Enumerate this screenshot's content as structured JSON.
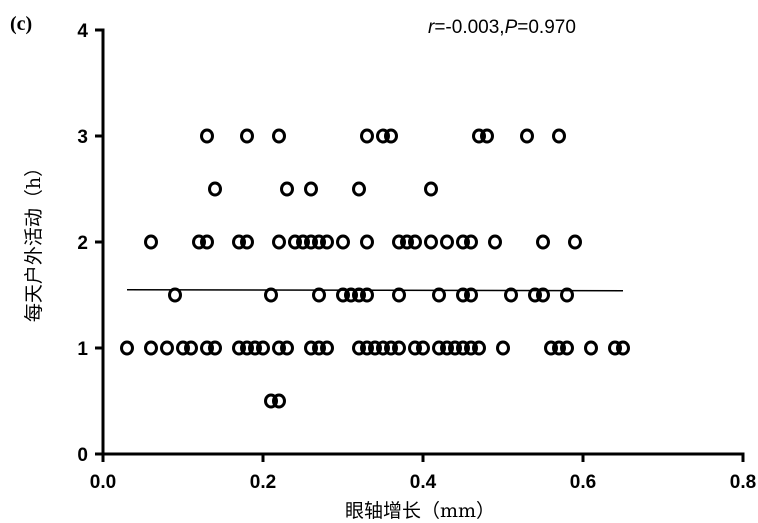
{
  "chart_data": {
    "type": "scatter",
    "panel_label": "(c)",
    "xlabel": "眼轴增长（mm）",
    "ylabel": "每天户外活动（h）",
    "xlim": [
      0.0,
      0.8
    ],
    "ylim": [
      0,
      4
    ],
    "x_ticks": [
      "0.0",
      "0.2",
      "0.4",
      "0.6",
      "0.8"
    ],
    "y_ticks": [
      "0",
      "1",
      "2",
      "3",
      "4"
    ],
    "annotation": {
      "r_symbol": "r",
      "r_value": "=-0.003,",
      "p_symbol": "P",
      "p_value": "=0.970"
    },
    "fit_line": {
      "x": [
        0.03,
        0.65
      ],
      "y": [
        1.55,
        1.54
      ]
    },
    "points": [
      {
        "x": 0.03,
        "y": 1
      },
      {
        "x": 0.06,
        "y": 1
      },
      {
        "x": 0.08,
        "y": 1
      },
      {
        "x": 0.1,
        "y": 1
      },
      {
        "x": 0.11,
        "y": 1
      },
      {
        "x": 0.13,
        "y": 1
      },
      {
        "x": 0.14,
        "y": 1
      },
      {
        "x": 0.17,
        "y": 1
      },
      {
        "x": 0.18,
        "y": 1
      },
      {
        "x": 0.19,
        "y": 1
      },
      {
        "x": 0.2,
        "y": 1
      },
      {
        "x": 0.22,
        "y": 1
      },
      {
        "x": 0.23,
        "y": 1
      },
      {
        "x": 0.26,
        "y": 1
      },
      {
        "x": 0.27,
        "y": 1
      },
      {
        "x": 0.28,
        "y": 1
      },
      {
        "x": 0.32,
        "y": 1
      },
      {
        "x": 0.33,
        "y": 1
      },
      {
        "x": 0.34,
        "y": 1
      },
      {
        "x": 0.35,
        "y": 1
      },
      {
        "x": 0.36,
        "y": 1
      },
      {
        "x": 0.37,
        "y": 1
      },
      {
        "x": 0.39,
        "y": 1
      },
      {
        "x": 0.4,
        "y": 1
      },
      {
        "x": 0.42,
        "y": 1
      },
      {
        "x": 0.43,
        "y": 1
      },
      {
        "x": 0.44,
        "y": 1
      },
      {
        "x": 0.45,
        "y": 1
      },
      {
        "x": 0.46,
        "y": 1
      },
      {
        "x": 0.47,
        "y": 1
      },
      {
        "x": 0.5,
        "y": 1
      },
      {
        "x": 0.56,
        "y": 1
      },
      {
        "x": 0.57,
        "y": 1
      },
      {
        "x": 0.58,
        "y": 1
      },
      {
        "x": 0.61,
        "y": 1
      },
      {
        "x": 0.64,
        "y": 1
      },
      {
        "x": 0.65,
        "y": 1
      },
      {
        "x": 0.21,
        "y": 0.5
      },
      {
        "x": 0.22,
        "y": 0.5
      },
      {
        "x": 0.09,
        "y": 1.5
      },
      {
        "x": 0.21,
        "y": 1.5
      },
      {
        "x": 0.27,
        "y": 1.5
      },
      {
        "x": 0.3,
        "y": 1.5
      },
      {
        "x": 0.31,
        "y": 1.5
      },
      {
        "x": 0.32,
        "y": 1.5
      },
      {
        "x": 0.33,
        "y": 1.5
      },
      {
        "x": 0.37,
        "y": 1.5
      },
      {
        "x": 0.42,
        "y": 1.5
      },
      {
        "x": 0.45,
        "y": 1.5
      },
      {
        "x": 0.46,
        "y": 1.5
      },
      {
        "x": 0.51,
        "y": 1.5
      },
      {
        "x": 0.54,
        "y": 1.5
      },
      {
        "x": 0.55,
        "y": 1.5
      },
      {
        "x": 0.58,
        "y": 1.5
      },
      {
        "x": 0.06,
        "y": 2
      },
      {
        "x": 0.12,
        "y": 2
      },
      {
        "x": 0.13,
        "y": 2
      },
      {
        "x": 0.17,
        "y": 2
      },
      {
        "x": 0.18,
        "y": 2
      },
      {
        "x": 0.22,
        "y": 2
      },
      {
        "x": 0.24,
        "y": 2
      },
      {
        "x": 0.25,
        "y": 2
      },
      {
        "x": 0.26,
        "y": 2
      },
      {
        "x": 0.27,
        "y": 2
      },
      {
        "x": 0.28,
        "y": 2
      },
      {
        "x": 0.3,
        "y": 2
      },
      {
        "x": 0.33,
        "y": 2
      },
      {
        "x": 0.37,
        "y": 2
      },
      {
        "x": 0.38,
        "y": 2
      },
      {
        "x": 0.39,
        "y": 2
      },
      {
        "x": 0.41,
        "y": 2
      },
      {
        "x": 0.43,
        "y": 2
      },
      {
        "x": 0.45,
        "y": 2
      },
      {
        "x": 0.46,
        "y": 2
      },
      {
        "x": 0.49,
        "y": 2
      },
      {
        "x": 0.55,
        "y": 2
      },
      {
        "x": 0.59,
        "y": 2
      },
      {
        "x": 0.14,
        "y": 2.5
      },
      {
        "x": 0.23,
        "y": 2.5
      },
      {
        "x": 0.26,
        "y": 2.5
      },
      {
        "x": 0.32,
        "y": 2.5
      },
      {
        "x": 0.41,
        "y": 2.5
      },
      {
        "x": 0.13,
        "y": 3
      },
      {
        "x": 0.18,
        "y": 3
      },
      {
        "x": 0.22,
        "y": 3
      },
      {
        "x": 0.33,
        "y": 3
      },
      {
        "x": 0.35,
        "y": 3
      },
      {
        "x": 0.36,
        "y": 3
      },
      {
        "x": 0.47,
        "y": 3
      },
      {
        "x": 0.48,
        "y": 3
      },
      {
        "x": 0.53,
        "y": 3
      },
      {
        "x": 0.57,
        "y": 3
      }
    ]
  }
}
